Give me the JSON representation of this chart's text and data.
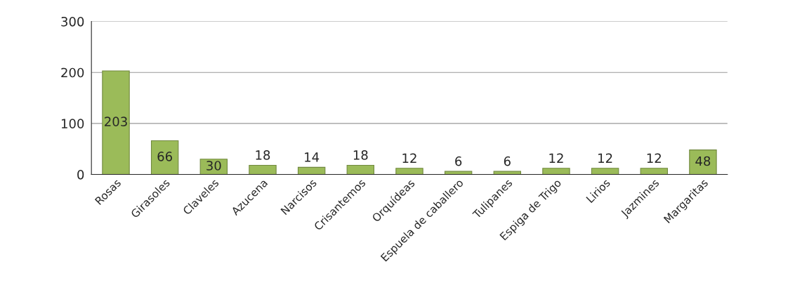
{
  "chart_data": {
    "type": "bar",
    "categories": [
      "Rosas",
      "Girasoles",
      "Claveles",
      "Azucena",
      "Narcisos",
      "Crisantemos",
      "Orquídeas",
      "Espuela de caballero",
      "Tulipanes",
      "Espiga de Trigo",
      "Lirios",
      "Jazmines",
      "Margaritas"
    ],
    "values": [
      203,
      66,
      30,
      18,
      14,
      18,
      12,
      6,
      6,
      12,
      12,
      12,
      48
    ],
    "color": "#9bbb59",
    "ylim": [
      0,
      300
    ],
    "yticks": [
      0,
      100,
      200,
      300
    ],
    "grid": "y",
    "data_labels": true
  }
}
